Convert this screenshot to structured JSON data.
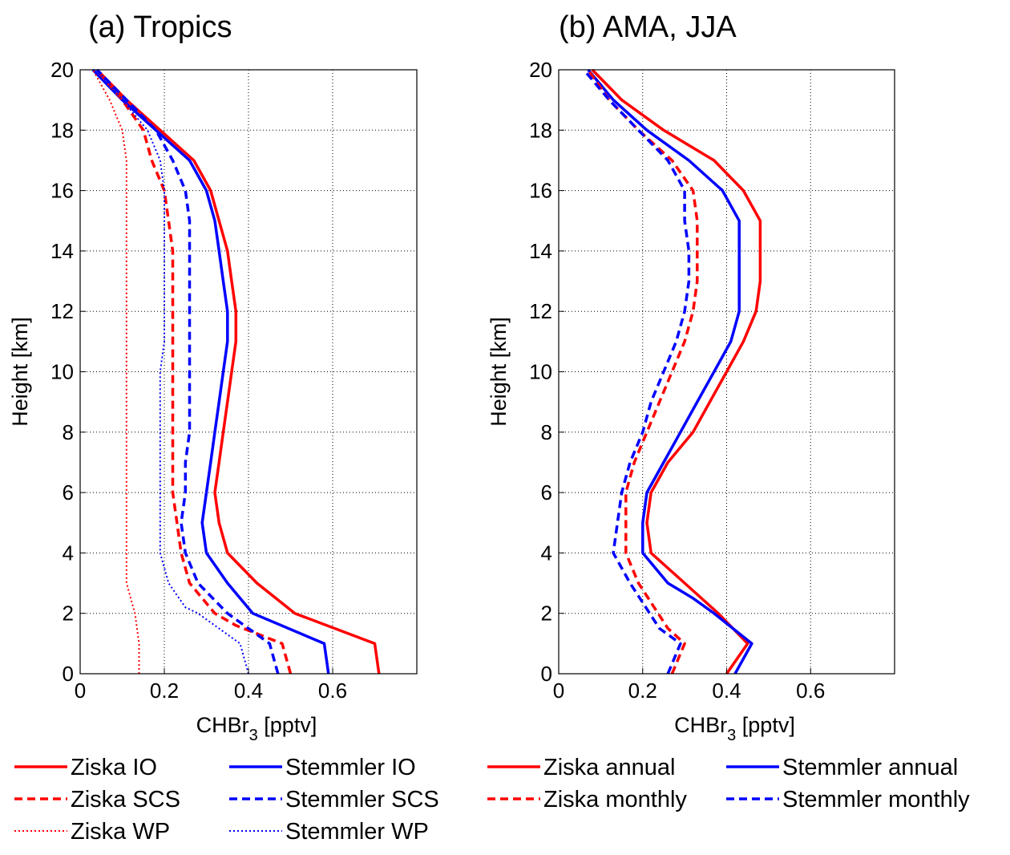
{
  "chart_data": [
    {
      "type": "line",
      "title": "(a) Tropics",
      "xlabel": "CHBr",
      "xlabel_sub": "3",
      "xlabel_unit": " [pptv]",
      "ylabel": "Height [km]",
      "xlim": [
        0,
        0.8
      ],
      "ylim": [
        0,
        20
      ],
      "xticks": [
        0,
        0.2,
        0.4,
        0.6
      ],
      "xtick_labels": [
        "0",
        "0.2",
        "0.4",
        "0.6"
      ],
      "yticks": [
        0,
        2,
        4,
        6,
        8,
        10,
        12,
        14,
        16,
        18,
        20
      ],
      "ytick_labels": [
        "0",
        "2",
        "4",
        "6",
        "8",
        "10",
        "12",
        "14",
        "16",
        "18",
        "20"
      ],
      "grid": true,
      "series": [
        {
          "name": "Ziska IO",
          "color": "#ff0000",
          "style": "solid",
          "points": [
            [
              0.71,
              0
            ],
            [
              0.7,
              1
            ],
            [
              0.51,
              2
            ],
            [
              0.42,
              3
            ],
            [
              0.35,
              4
            ],
            [
              0.33,
              5
            ],
            [
              0.32,
              6
            ],
            [
              0.33,
              7
            ],
            [
              0.34,
              8
            ],
            [
              0.35,
              9
            ],
            [
              0.36,
              10
            ],
            [
              0.37,
              11
            ],
            [
              0.37,
              12
            ],
            [
              0.36,
              13
            ],
            [
              0.35,
              14
            ],
            [
              0.33,
              15
            ],
            [
              0.31,
              16
            ],
            [
              0.27,
              17
            ],
            [
              0.19,
              18
            ],
            [
              0.11,
              19
            ],
            [
              0.04,
              20
            ]
          ]
        },
        {
          "name": "Stemmler IO",
          "color": "#0000ff",
          "style": "solid",
          "points": [
            [
              0.59,
              0
            ],
            [
              0.58,
              1
            ],
            [
              0.41,
              2
            ],
            [
              0.35,
              3
            ],
            [
              0.3,
              4
            ],
            [
              0.29,
              5
            ],
            [
              0.3,
              6
            ],
            [
              0.31,
              7
            ],
            [
              0.32,
              8
            ],
            [
              0.33,
              9
            ],
            [
              0.34,
              10
            ],
            [
              0.35,
              11
            ],
            [
              0.35,
              12
            ],
            [
              0.34,
              13
            ],
            [
              0.33,
              14
            ],
            [
              0.32,
              15
            ],
            [
              0.3,
              16
            ],
            [
              0.26,
              17
            ],
            [
              0.18,
              18
            ],
            [
              0.1,
              19
            ],
            [
              0.03,
              20
            ]
          ]
        },
        {
          "name": "Ziska SCS",
          "color": "#ff0000",
          "style": "dashed",
          "points": [
            [
              0.5,
              0
            ],
            [
              0.48,
              1
            ],
            [
              0.37,
              1.6
            ],
            [
              0.32,
              2
            ],
            [
              0.26,
              3
            ],
            [
              0.24,
              4
            ],
            [
              0.23,
              5
            ],
            [
              0.22,
              6
            ],
            [
              0.22,
              7
            ],
            [
              0.22,
              8
            ],
            [
              0.22,
              9
            ],
            [
              0.22,
              10
            ],
            [
              0.22,
              11
            ],
            [
              0.22,
              12
            ],
            [
              0.22,
              13
            ],
            [
              0.22,
              14
            ],
            [
              0.21,
              15
            ],
            [
              0.2,
              16
            ],
            [
              0.17,
              17
            ],
            [
              0.15,
              18
            ],
            [
              0.1,
              19
            ],
            [
              0.04,
              20
            ]
          ]
        },
        {
          "name": "Stemmler SCS",
          "color": "#0000ff",
          "style": "dashed",
          "points": [
            [
              0.47,
              0
            ],
            [
              0.45,
              1
            ],
            [
              0.35,
              2
            ],
            [
              0.28,
              3
            ],
            [
              0.25,
              4
            ],
            [
              0.24,
              5
            ],
            [
              0.25,
              6
            ],
            [
              0.25,
              7
            ],
            [
              0.26,
              8
            ],
            [
              0.26,
              9
            ],
            [
              0.26,
              10
            ],
            [
              0.26,
              11
            ],
            [
              0.26,
              12
            ],
            [
              0.26,
              13
            ],
            [
              0.26,
              14
            ],
            [
              0.26,
              15
            ],
            [
              0.25,
              16
            ],
            [
              0.22,
              17
            ],
            [
              0.18,
              18
            ],
            [
              0.11,
              19
            ],
            [
              0.04,
              20
            ]
          ]
        },
        {
          "name": "Ziska WP",
          "color": "#ff0000",
          "style": "dotted",
          "points": [
            [
              0.14,
              0
            ],
            [
              0.14,
              1
            ],
            [
              0.13,
              2
            ],
            [
              0.11,
              3
            ],
            [
              0.11,
              4
            ],
            [
              0.11,
              5
            ],
            [
              0.11,
              6
            ],
            [
              0.11,
              7
            ],
            [
              0.11,
              8
            ],
            [
              0.11,
              9
            ],
            [
              0.11,
              10
            ],
            [
              0.11,
              11
            ],
            [
              0.11,
              12
            ],
            [
              0.11,
              13
            ],
            [
              0.11,
              14
            ],
            [
              0.11,
              15
            ],
            [
              0.11,
              16
            ],
            [
              0.11,
              17
            ],
            [
              0.1,
              18
            ],
            [
              0.07,
              19
            ],
            [
              0.03,
              20
            ]
          ]
        },
        {
          "name": "Stemmler WP",
          "color": "#0000ff",
          "style": "dotted",
          "points": [
            [
              0.4,
              0
            ],
            [
              0.38,
              1
            ],
            [
              0.28,
              2
            ],
            [
              0.25,
              2.2
            ],
            [
              0.21,
              3
            ],
            [
              0.19,
              4
            ],
            [
              0.19,
              5
            ],
            [
              0.19,
              6
            ],
            [
              0.19,
              7
            ],
            [
              0.19,
              8
            ],
            [
              0.19,
              9
            ],
            [
              0.19,
              10
            ],
            [
              0.2,
              11
            ],
            [
              0.2,
              12
            ],
            [
              0.2,
              13
            ],
            [
              0.2,
              14
            ],
            [
              0.2,
              15
            ],
            [
              0.2,
              16
            ],
            [
              0.19,
              17
            ],
            [
              0.16,
              18
            ],
            [
              0.1,
              19
            ],
            [
              0.04,
              20
            ]
          ]
        }
      ],
      "legend": [
        {
          "label": "Ziska IO",
          "color": "#ff0000",
          "style": "solid"
        },
        {
          "label": "Stemmler IO",
          "color": "#0000ff",
          "style": "solid"
        },
        {
          "label": "Ziska SCS",
          "color": "#ff0000",
          "style": "dashed"
        },
        {
          "label": "Stemmler SCS",
          "color": "#0000ff",
          "style": "dashed"
        },
        {
          "label": "Ziska WP",
          "color": "#ff0000",
          "style": "dotted"
        },
        {
          "label": "Stemmler WP",
          "color": "#0000ff",
          "style": "dotted"
        }
      ]
    },
    {
      "type": "line",
      "title": "(b) AMA, JJA",
      "xlabel": "CHBr",
      "xlabel_sub": "3",
      "xlabel_unit": " [pptv]",
      "ylabel": "Height [km]",
      "xlim": [
        0,
        0.8
      ],
      "ylim": [
        0,
        20
      ],
      "xticks": [
        0,
        0.2,
        0.4,
        0.6
      ],
      "xtick_labels": [
        "0",
        "0.2",
        "0.4",
        "0.6"
      ],
      "yticks": [
        0,
        2,
        4,
        6,
        8,
        10,
        12,
        14,
        16,
        18,
        20
      ],
      "ytick_labels": [
        "0",
        "2",
        "4",
        "6",
        "8",
        "10",
        "12",
        "14",
        "16",
        "18",
        "20"
      ],
      "grid": true,
      "series": [
        {
          "name": "Ziska annual",
          "color": "#ff0000",
          "style": "solid",
          "points": [
            [
              0.4,
              0
            ],
            [
              0.45,
              1
            ],
            [
              0.38,
              2
            ],
            [
              0.3,
              3
            ],
            [
              0.22,
              4
            ],
            [
              0.21,
              5
            ],
            [
              0.22,
              6
            ],
            [
              0.26,
              7
            ],
            [
              0.32,
              8
            ],
            [
              0.36,
              9
            ],
            [
              0.4,
              10
            ],
            [
              0.44,
              11
            ],
            [
              0.47,
              12
            ],
            [
              0.48,
              13
            ],
            [
              0.48,
              14
            ],
            [
              0.48,
              15
            ],
            [
              0.44,
              16
            ],
            [
              0.37,
              17
            ],
            [
              0.25,
              18
            ],
            [
              0.15,
              19
            ],
            [
              0.08,
              20
            ]
          ]
        },
        {
          "name": "Stemmler annual",
          "color": "#0000ff",
          "style": "solid",
          "points": [
            [
              0.42,
              0
            ],
            [
              0.46,
              1
            ],
            [
              0.37,
              2
            ],
            [
              0.32,
              2.5
            ],
            [
              0.26,
              3
            ],
            [
              0.2,
              4
            ],
            [
              0.2,
              5
            ],
            [
              0.21,
              6
            ],
            [
              0.25,
              7
            ],
            [
              0.29,
              8
            ],
            [
              0.33,
              9
            ],
            [
              0.37,
              10
            ],
            [
              0.41,
              11
            ],
            [
              0.43,
              12
            ],
            [
              0.43,
              13
            ],
            [
              0.43,
              14
            ],
            [
              0.43,
              15
            ],
            [
              0.39,
              16
            ],
            [
              0.31,
              17
            ],
            [
              0.21,
              18
            ],
            [
              0.13,
              19
            ],
            [
              0.07,
              20
            ]
          ]
        },
        {
          "name": "Ziska monthly",
          "color": "#ff0000",
          "style": "dashed",
          "points": [
            [
              0.27,
              0
            ],
            [
              0.3,
              1
            ],
            [
              0.26,
              1.5
            ],
            [
              0.19,
              3
            ],
            [
              0.16,
              4
            ],
            [
              0.16,
              5
            ],
            [
              0.16,
              6
            ],
            [
              0.18,
              7
            ],
            [
              0.21,
              8
            ],
            [
              0.24,
              9
            ],
            [
              0.27,
              10
            ],
            [
              0.3,
              11
            ],
            [
              0.32,
              12
            ],
            [
              0.33,
              13
            ],
            [
              0.33,
              14
            ],
            [
              0.33,
              15
            ],
            [
              0.32,
              16
            ],
            [
              0.27,
              17
            ],
            [
              0.19,
              18
            ],
            [
              0.12,
              19
            ],
            [
              0.07,
              20
            ]
          ]
        },
        {
          "name": "Stemmler monthly",
          "color": "#0000ff",
          "style": "dashed",
          "points": [
            [
              0.26,
              0
            ],
            [
              0.29,
              1
            ],
            [
              0.24,
              1.5
            ],
            [
              0.17,
              3
            ],
            [
              0.13,
              4
            ],
            [
              0.14,
              5
            ],
            [
              0.15,
              6
            ],
            [
              0.17,
              7
            ],
            [
              0.2,
              8
            ],
            [
              0.22,
              9
            ],
            [
              0.25,
              10
            ],
            [
              0.28,
              11
            ],
            [
              0.3,
              12
            ],
            [
              0.31,
              13
            ],
            [
              0.31,
              14
            ],
            [
              0.3,
              15
            ],
            [
              0.3,
              16
            ],
            [
              0.26,
              17
            ],
            [
              0.19,
              18
            ],
            [
              0.12,
              19
            ],
            [
              0.06,
              20
            ]
          ]
        }
      ],
      "legend": [
        {
          "label": "Ziska annual",
          "color": "#ff0000",
          "style": "solid"
        },
        {
          "label": "Stemmler annual",
          "color": "#0000ff",
          "style": "solid"
        },
        {
          "label": "Ziska monthly",
          "color": "#ff0000",
          "style": "dashed"
        },
        {
          "label": "Stemmler monthly",
          "color": "#0000ff",
          "style": "dashed"
        }
      ]
    }
  ]
}
